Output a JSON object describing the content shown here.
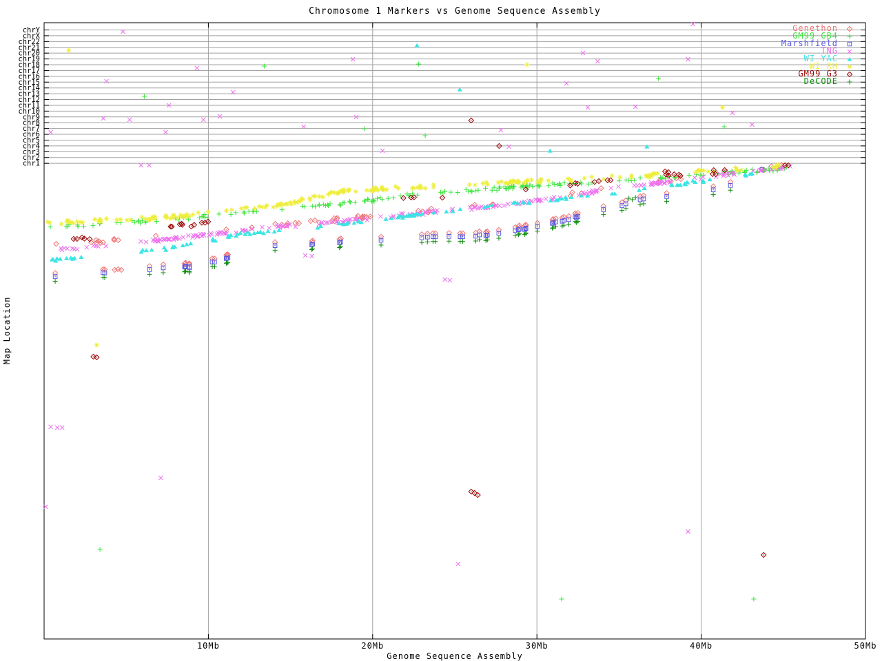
{
  "chart_data": {
    "type": "scatter",
    "title": "Chromosome 1 Markers vs Genome Sequence Assembly",
    "xlabel": "Genome Sequence Assembly",
    "ylabel": "Map Location",
    "background": "#ffffff",
    "grid": {
      "on": true,
      "color": "#a0a0a0"
    },
    "axis_color": "#000000",
    "x_axis": {
      "min": 0,
      "max": 50,
      "unit": "Mb",
      "ticks": [
        {
          "v": 10,
          "label": "10Mb"
        },
        {
          "v": 20,
          "label": "20Mb"
        },
        {
          "v": 30,
          "label": "30Mb"
        },
        {
          "v": 40,
          "label": "40Mb"
        },
        {
          "v": 50,
          "label": "50Mb"
        }
      ]
    },
    "y_axis": {
      "type": "chromosome-tracks",
      "note": "cumulative map location; tracks for each chromosome, chr1 band occupies lower region; point y stored as screen px (no numeric scale shown)",
      "categories": [
        "chrY",
        "chrX",
        "chr22",
        "chr21",
        "chr20",
        "chr19",
        "chr18",
        "chr17",
        "chr16",
        "chr15",
        "chr14",
        "chr13",
        "chr12",
        "chr11",
        "chr10",
        "chr9",
        "chr8",
        "chr7",
        "chr6",
        "chr5",
        "chr4",
        "chr3",
        "chr2",
        "chr1"
      ]
    },
    "legend_position": "top-right",
    "coordinate_note": "band anchors and points are [x in Mb, y in screen px]; bands are dense marker runs expanded with seeded jitter",
    "series": [
      {
        "name": "Genethon",
        "color": "#ee7474",
        "marker": "diamond-dot",
        "bands": [
          {
            "anchors": [
              [
                0.7,
                356
              ],
              [
                5.7,
                346
              ],
              [
                9.9,
                338
              ],
              [
                14.1,
                327
              ],
              [
                18.3,
                318
              ],
              [
                23.3,
                306
              ],
              [
                26.7,
                298
              ],
              [
                30.9,
                287
              ],
              [
                35.1,
                269
              ],
              [
                39.3,
                259
              ],
              [
                43.5,
                246
              ],
              [
                45.1,
                241
              ]
            ],
            "count": 60,
            "seed": 11,
            "jitter": [
              0.25,
              5
            ],
            "dy": 0
          },
          {
            "anchors": [
              [
                0.25,
                401
              ],
              [
                4.0,
                395
              ],
              [
                9.1,
                387
              ],
              [
                14.1,
                358
              ],
              [
                17.4,
                353
              ],
              [
                22.5,
                346
              ],
              [
                27.5,
                340
              ],
              [
                31.7,
                320
              ],
              [
                35.9,
                293
              ],
              [
                39.3,
                279
              ],
              [
                41.8,
                271
              ],
              [
                43.9,
                249
              ]
            ],
            "count": 58,
            "seed": 7,
            "jitter": [
              0.2,
              3
            ],
            "dy": -5
          }
        ],
        "points": [
          [
            4.3,
            392
          ],
          [
            4.5,
            391
          ],
          [
            4.7,
            392
          ]
        ]
      },
      {
        "name": "GM99 GB4",
        "color": "#3ce43c",
        "marker": "plus",
        "bands": [
          {
            "anchors": [
              [
                0.05,
                331
              ],
              [
                7.8,
                319
              ],
              [
                14.1,
                303
              ],
              [
                18.3,
                295
              ],
              [
                23.3,
                281
              ],
              [
                29.2,
                271
              ],
              [
                35.1,
                262
              ],
              [
                40.1,
                254
              ],
              [
                45.6,
                244
              ]
            ],
            "count": 190,
            "seed": 21,
            "jitter": [
              0.3,
              5
            ],
            "dy": 0
          }
        ],
        "points": [
          [
            13.4,
            96
          ],
          [
            22.8,
            93
          ],
          [
            37.4,
            114
          ],
          [
            6.1,
            140
          ],
          [
            19.5,
            187
          ],
          [
            23.2,
            197
          ],
          [
            41.4,
            184
          ],
          [
            3.4,
            798
          ],
          [
            31.5,
            870
          ],
          [
            43.2,
            870
          ]
        ]
      },
      {
        "name": "Marshfield",
        "color": "#5858e0",
        "marker": "square-dot",
        "bands": [
          {
            "anchors": [
              [
                0.25,
                401
              ],
              [
                4.0,
                395
              ],
              [
                9.1,
                387
              ],
              [
                14.1,
                358
              ],
              [
                17.4,
                353
              ],
              [
                22.5,
                346
              ],
              [
                27.5,
                340
              ],
              [
                31.7,
                320
              ],
              [
                35.9,
                293
              ],
              [
                39.3,
                279
              ],
              [
                41.8,
                271
              ],
              [
                43.9,
                249
              ]
            ],
            "count": 58,
            "seed": 7,
            "jitter": [
              0.2,
              3
            ],
            "dy": 0
          }
        ],
        "points": [
          [
            43.7,
            246
          ]
        ]
      },
      {
        "name": "TNG",
        "color": "#ee70ee",
        "marker": "x",
        "bands": [
          {
            "anchors": [
              [
                0.9,
                363
              ],
              [
                5.7,
                352
              ],
              [
                9.9,
                341
              ],
              [
                14.1,
                330
              ],
              [
                18.3,
                321
              ],
              [
                23.3,
                309
              ],
              [
                26.7,
                301
              ],
              [
                30.9,
                289
              ],
              [
                35.1,
                271
              ],
              [
                39.3,
                261
              ],
              [
                43.5,
                247
              ],
              [
                45.5,
                242
              ]
            ],
            "count": 240,
            "seed": 31,
            "jitter": [
              0.3,
              4
            ],
            "dy": 0
          }
        ],
        "points": [
          [
            4.8,
            46
          ],
          [
            39.5,
            35
          ],
          [
            9.3,
            99
          ],
          [
            18.8,
            86
          ],
          [
            32.8,
            77
          ],
          [
            33.7,
            89
          ],
          [
            39.2,
            86
          ],
          [
            3.8,
            118
          ],
          [
            11.5,
            134
          ],
          [
            7.6,
            153
          ],
          [
            31.8,
            121
          ],
          [
            36.0,
            155
          ],
          [
            41.9,
            164
          ],
          [
            3.6,
            172
          ],
          [
            5.2,
            174
          ],
          [
            9.7,
            174
          ],
          [
            10.7,
            169
          ],
          [
            15.8,
            184
          ],
          [
            19.0,
            170
          ],
          [
            27.8,
            189
          ],
          [
            33.1,
            156
          ],
          [
            43.1,
            181
          ],
          [
            0.4,
            192
          ],
          [
            7.4,
            192
          ],
          [
            20.6,
            219
          ],
          [
            28.3,
            213
          ],
          [
            5.9,
            240
          ],
          [
            6.4,
            240
          ],
          [
            15.9,
            371
          ],
          [
            16.3,
            372
          ],
          [
            24.4,
            406
          ],
          [
            24.7,
            407
          ],
          [
            0.4,
            620
          ],
          [
            0.8,
            621
          ],
          [
            1.1,
            621
          ],
          [
            7.1,
            694
          ],
          [
            0.1,
            736
          ],
          [
            39.2,
            772
          ],
          [
            25.2,
            819
          ]
        ]
      },
      {
        "name": "WI YAC",
        "color": "#3ce4e4",
        "marker": "triangle",
        "bands": [
          {
            "anchors": [
              [
                0.0,
                379
              ],
              [
                3.6,
                372
              ],
              [
                7.8,
                360
              ],
              [
                12.0,
                340
              ],
              [
                16.2,
                331
              ],
              [
                20.4,
                318
              ],
              [
                24.6,
                306
              ],
              [
                28.8,
                295
              ],
              [
                33.0,
                285
              ],
              [
                37.2,
                272
              ],
              [
                41.4,
                259
              ],
              [
                44.9,
                243
              ]
            ],
            "count": 120,
            "seed": 41,
            "jitter": [
              0.35,
              4
            ],
            "dy": 0
          }
        ],
        "points": [
          [
            22.7,
            66
          ],
          [
            25.3,
            130
          ],
          [
            30.8,
            219
          ],
          [
            36.7,
            213
          ]
        ]
      },
      {
        "name": "WI RH",
        "color": "#eeee3a",
        "marker": "star",
        "bands": [
          {
            "anchors": [
              [
                0.05,
                324
              ],
              [
                7.8,
                315
              ],
              [
                14.1,
                299
              ],
              [
                18.3,
                277
              ],
              [
                23.3,
                271
              ],
              [
                29.2,
                264
              ],
              [
                35.1,
                257
              ],
              [
                40.1,
                249
              ],
              [
                45.3,
                240
              ]
            ],
            "count": 200,
            "seed": 51,
            "jitter": [
              0.3,
              5
            ],
            "dy": 0
          }
        ],
        "points": [
          [
            1.5,
            73
          ],
          [
            29.4,
            94
          ],
          [
            41.3,
            156
          ],
          [
            3.2,
            501
          ]
        ]
      },
      {
        "name": "GM99 G3",
        "color": "#990000",
        "marker": "diamond-dot",
        "bands": [
          {
            "anchors": [
              [
                0.7,
                352
              ],
              [
                7.8,
                330
              ],
              [
                14.1,
                307
              ],
              [
                20.4,
                292
              ],
              [
                26.7,
                280
              ],
              [
                35.1,
                261
              ],
              [
                43.5,
                245
              ]
            ],
            "count": 34,
            "seed": 61,
            "jitter": [
              0.4,
              6
            ],
            "dy": 0
          }
        ],
        "points": [
          [
            26.0,
            175
          ],
          [
            27.7,
            212
          ],
          [
            3.0,
            518
          ],
          [
            3.2,
            519
          ],
          [
            26.0,
            714
          ],
          [
            26.2,
            716
          ],
          [
            26.4,
            719
          ],
          [
            43.8,
            806
          ],
          [
            37.8,
            249
          ],
          [
            38.0,
            250
          ],
          [
            45.1,
            240
          ],
          [
            45.3,
            240
          ],
          [
            1.8,
            347
          ],
          [
            2.0,
            347
          ]
        ]
      },
      {
        "name": "DeCODE",
        "color": "#0d8c0d",
        "marker": "plus",
        "bands": [
          {
            "anchors": [
              [
                0.25,
                401
              ],
              [
                4.0,
                395
              ],
              [
                9.1,
                387
              ],
              [
                14.1,
                358
              ],
              [
                17.4,
                353
              ],
              [
                22.5,
                346
              ],
              [
                27.5,
                340
              ],
              [
                31.7,
                320
              ],
              [
                35.9,
                293
              ],
              [
                39.3,
                279
              ],
              [
                41.8,
                271
              ],
              [
                43.9,
                249
              ]
            ],
            "count": 58,
            "seed": 7,
            "jitter": [
              0.2,
              3
            ],
            "dy": 7
          }
        ],
        "points": [
          [
            35.6,
            288
          ],
          [
            35.8,
            290
          ],
          [
            36.0,
            287
          ]
        ]
      }
    ]
  }
}
